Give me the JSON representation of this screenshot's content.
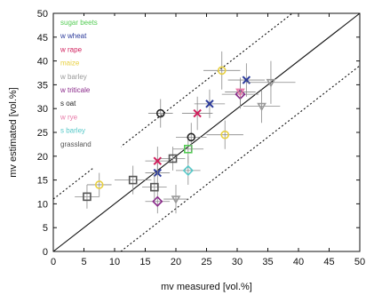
{
  "chart_data": {
    "type": "scatter",
    "xlabel": "mv measured [vol.%]",
    "ylabel": "mv estimated [vol.%]",
    "xlim": [
      0,
      50
    ],
    "ylim": [
      0,
      50
    ],
    "x_ticks": [
      0,
      5,
      10,
      15,
      20,
      25,
      30,
      35,
      40,
      45,
      50
    ],
    "y_ticks": [
      0,
      5,
      10,
      15,
      20,
      25,
      30,
      35,
      40,
      45,
      50
    ],
    "grid": false,
    "legend_position": "top-left",
    "reference_lines": [
      {
        "type": "1:1",
        "style": "solid",
        "offset": 0
      },
      {
        "type": "1:1",
        "style": "dotted",
        "offset": 11
      },
      {
        "type": "1:1",
        "style": "dotted",
        "offset": -11
      }
    ],
    "series": [
      {
        "name": "sugar beets",
        "color": "#55cc55",
        "marker": "square",
        "points": [
          {
            "x": 22,
            "y": 21.5,
            "xerr": 2.5,
            "yerr": 3
          }
        ]
      },
      {
        "name": "w wheat",
        "color": "#2b3a9a",
        "marker": "cross",
        "points": [
          {
            "x": 31.5,
            "y": 36,
            "xerr": 3,
            "yerr": 3.5
          },
          {
            "x": 25.5,
            "y": 31,
            "xerr": 2.5,
            "yerr": 3
          },
          {
            "x": 17,
            "y": 16.5,
            "xerr": 2,
            "yerr": 3
          }
        ]
      },
      {
        "name": "w rape",
        "color": "#d01f5c",
        "marker": "cross",
        "points": [
          {
            "x": 23.5,
            "y": 29,
            "xerr": 2.5,
            "yerr": 3.5
          },
          {
            "x": 17,
            "y": 19,
            "xerr": 2,
            "yerr": 3
          }
        ]
      },
      {
        "name": "maize",
        "color": "#e8d040",
        "marker": "circle",
        "points": [
          {
            "x": 27.5,
            "y": 38,
            "xerr": 3,
            "yerr": 4
          },
          {
            "x": 7.5,
            "y": 14,
            "xerr": 2,
            "yerr": 2.5
          },
          {
            "x": 28,
            "y": 24.5,
            "xerr": 3,
            "yerr": 3
          }
        ]
      },
      {
        "name": "w barley",
        "color": "#999999",
        "marker": "triangle-down",
        "points": [
          {
            "x": 34,
            "y": 30.5,
            "xerr": 3,
            "yerr": 3.5
          },
          {
            "x": 35.5,
            "y": 35.5,
            "xerr": 4,
            "yerr": 4.5
          },
          {
            "x": 20,
            "y": 11,
            "xerr": 2,
            "yerr": 3
          }
        ]
      },
      {
        "name": "w triticale",
        "color": "#8a2a8a",
        "marker": "diamond",
        "points": [
          {
            "x": 30.5,
            "y": 33,
            "xerr": 3,
            "yerr": 3
          },
          {
            "x": 17,
            "y": 10.5,
            "xerr": 2,
            "yerr": 2.5
          }
        ]
      },
      {
        "name": "s oat",
        "color": "#222222",
        "marker": "circle",
        "points": [
          {
            "x": 22.5,
            "y": 24,
            "xerr": 2.5,
            "yerr": 3
          },
          {
            "x": 17.5,
            "y": 29,
            "xerr": 2,
            "yerr": 3
          }
        ]
      },
      {
        "name": "w rye",
        "color": "#e87aa8",
        "marker": "triangle-down",
        "points": [
          {
            "x": 30.5,
            "y": 33.5,
            "xerr": 2.5,
            "yerr": 3
          }
        ]
      },
      {
        "name": "s barley",
        "color": "#55c8c8",
        "marker": "diamond",
        "points": [
          {
            "x": 22,
            "y": 17,
            "xerr": 2,
            "yerr": 3
          }
        ]
      },
      {
        "name": "grassland",
        "color": "#555555",
        "marker": "square",
        "points": [
          {
            "x": 5.5,
            "y": 11.5,
            "xerr": 2,
            "yerr": 2.5
          },
          {
            "x": 13,
            "y": 15,
            "xerr": 3,
            "yerr": 3
          },
          {
            "x": 16.5,
            "y": 13.5,
            "xerr": 2,
            "yerr": 2.5
          },
          {
            "x": 19.5,
            "y": 19.5,
            "xerr": 2,
            "yerr": 2.5
          }
        ]
      }
    ]
  }
}
